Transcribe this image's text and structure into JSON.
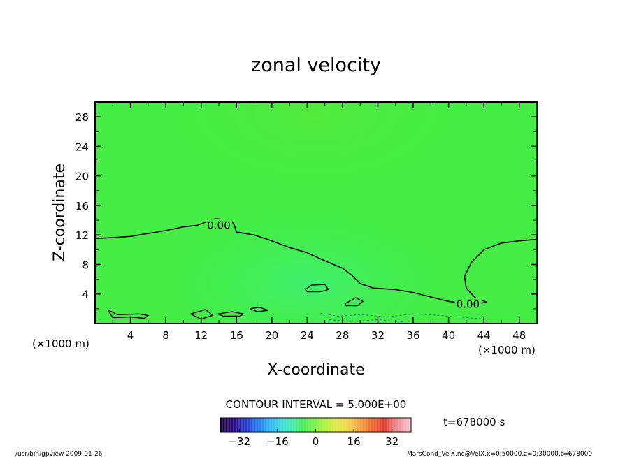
{
  "chart_data": {
    "type": "heatmap",
    "title": "zonal velocity",
    "xlabel": "X-coordinate",
    "ylabel": "Z-coordinate",
    "x_unit_left": "(×1000 m)",
    "x_unit_right": "(×1000 m)",
    "xlim": [
      0,
      50
    ],
    "ylim": [
      0,
      30
    ],
    "xticks": [
      4,
      8,
      12,
      16,
      20,
      24,
      28,
      32,
      36,
      40,
      44,
      48
    ],
    "yticks": [
      4,
      8,
      12,
      16,
      20,
      24,
      28
    ],
    "contour_interval_text": "CONTOUR INTERVAL = 5.000E+00",
    "time_text": "t=678000 s",
    "colorbar": {
      "range": [
        -40,
        40
      ],
      "ticks": [
        -32,
        -16,
        0,
        16,
        32
      ],
      "colormap": [
        "#1a0033",
        "#2a0a8a",
        "#1f3fd6",
        "#1f8af0",
        "#33c8f5",
        "#3fe8c0",
        "#45ec5a",
        "#7ef040",
        "#c6ef40",
        "#eee04a",
        "#f5b040",
        "#ef7030",
        "#e03a2a",
        "#f08a90",
        "#ffc8d8"
      ]
    },
    "background_color": "#44ee44",
    "contour_labels": [
      {
        "text": "0.00",
        "x": 14,
        "y": 13.3
      },
      {
        "text": "0.00",
        "x": 42.2,
        "y": 2.6
      }
    ],
    "zero_contour_main": [
      [
        0,
        11.5
      ],
      [
        4,
        11.8
      ],
      [
        8,
        12.6
      ],
      [
        10,
        13.1
      ],
      [
        11.5,
        13.3
      ],
      [
        13.6,
        14.2
      ],
      [
        15.4,
        14
      ],
      [
        15.8,
        13.2
      ],
      [
        16,
        12.4
      ],
      [
        18,
        12
      ],
      [
        20,
        11.2
      ],
      [
        22,
        10.3
      ],
      [
        24,
        9.6
      ],
      [
        26,
        8.5
      ],
      [
        28,
        7.5
      ],
      [
        29,
        6.6
      ],
      [
        30,
        5.4
      ],
      [
        31.5,
        4.8
      ],
      [
        34,
        4.6
      ],
      [
        36,
        4.2
      ],
      [
        38,
        3.6
      ],
      [
        40,
        3
      ],
      [
        42,
        2.7
      ],
      [
        43,
        2.6
      ],
      [
        44.3,
        2.9
      ]
    ],
    "zero_contour_right": [
      [
        44.3,
        2.9
      ],
      [
        43,
        3.5
      ],
      [
        42,
        4.8
      ],
      [
        41.8,
        6.4
      ],
      [
        42.6,
        8.3
      ],
      [
        44,
        10
      ],
      [
        46,
        10.9
      ],
      [
        48,
        11.2
      ],
      [
        50,
        11.4
      ]
    ],
    "small_contours": [
      [
        [
          23.8,
          4.6
        ],
        [
          24.5,
          5.2
        ],
        [
          26,
          5.3
        ],
        [
          26.4,
          4.6
        ],
        [
          25.5,
          4.3
        ],
        [
          24,
          4.3
        ],
        [
          23.8,
          4.6
        ]
      ],
      [
        [
          28.3,
          2.7
        ],
        [
          29.5,
          3.5
        ],
        [
          30.3,
          3.0
        ],
        [
          29.7,
          2.4
        ],
        [
          28.4,
          2.4
        ],
        [
          28.3,
          2.7
        ]
      ],
      [
        [
          1.4,
          1.9
        ],
        [
          2.5,
          1.2
        ],
        [
          5,
          1.3
        ],
        [
          6,
          1.1
        ],
        [
          5.6,
          0.7
        ],
        [
          4,
          0.9
        ],
        [
          2,
          0.8
        ],
        [
          1.4,
          1.9
        ]
      ],
      [
        [
          10.8,
          1.3
        ],
        [
          12.5,
          1.9
        ],
        [
          13.3,
          1.1
        ],
        [
          12,
          0.6
        ],
        [
          10.8,
          1.3
        ]
      ],
      [
        [
          13.9,
          1.3
        ],
        [
          15.5,
          1.6
        ],
        [
          16.8,
          1.3
        ],
        [
          16.4,
          1.0
        ],
        [
          14.5,
          1.0
        ],
        [
          13.9,
          1.3
        ]
      ],
      [
        [
          17.5,
          2.0
        ],
        [
          18.6,
          2.2
        ],
        [
          19.6,
          1.8
        ],
        [
          18.4,
          1.6
        ],
        [
          17.5,
          2.0
        ]
      ]
    ],
    "dashed_contours": [
      [
        [
          25.5,
          1.4
        ],
        [
          27.5,
          1.0
        ],
        [
          30,
          1.2
        ],
        [
          33,
          0.9
        ],
        [
          36,
          1.3
        ],
        [
          39,
          1.1
        ],
        [
          42,
          0.8
        ],
        [
          44.5,
          0.6
        ]
      ],
      [
        [
          26.5,
          0.5
        ],
        [
          29,
          0.3
        ],
        [
          32,
          0.5
        ],
        [
          35,
          0.2
        ]
      ]
    ]
  },
  "footer_left": "/usr/bin/gpview   2009-01-26",
  "footer_right": "MarsCond_VelX.nc@VelX,x=0:50000,z=0:30000,t=678000"
}
